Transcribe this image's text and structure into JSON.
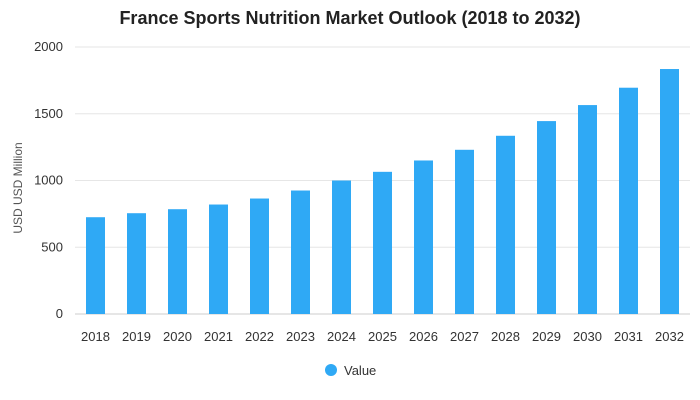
{
  "chart_data": {
    "type": "bar",
    "title": "France Sports Nutrition Market Outlook (2018 to 2032)",
    "ylabel": "USD USD Million",
    "xlabel": "",
    "categories": [
      "2018",
      "2019",
      "2020",
      "2021",
      "2022",
      "2023",
      "2024",
      "2025",
      "2026",
      "2027",
      "2028",
      "2029",
      "2030",
      "2031",
      "2032"
    ],
    "series": [
      {
        "name": "Value",
        "values": [
          725,
          755,
          785,
          820,
          865,
          925,
          1000,
          1065,
          1150,
          1230,
          1335,
          1445,
          1565,
          1695,
          1835
        ]
      }
    ],
    "ylim": [
      0,
      2000
    ],
    "yticks": [
      0,
      500,
      1000,
      1500,
      2000
    ],
    "grid": true,
    "legend_position": "bottom-center",
    "colors": {
      "bar": "#2fa9f5",
      "grid": "#e6e6e6",
      "axis": "#333333"
    }
  }
}
